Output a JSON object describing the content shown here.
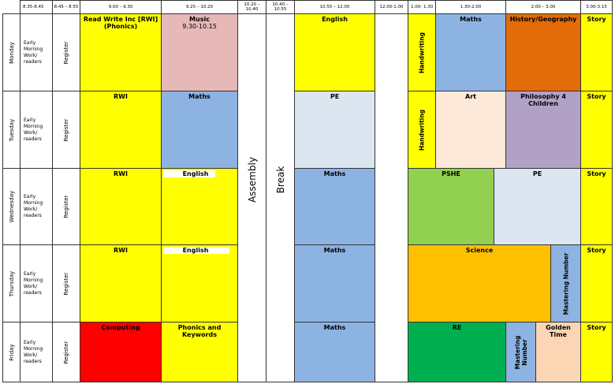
{
  "headers": {
    "t1": "8.35-8.45",
    "t2": "8.45 – 8.55",
    "t3": "9.00 – 9.30",
    "t4": "9.25 – 10.20",
    "t5": "10.20 – 10.40",
    "t6": "10.40 – 10.55",
    "t7": "10.55 – 12.00",
    "t8": "12.00-1.00",
    "t9": "1.00- 1.30",
    "t10": "1.30-2.00",
    "t11": "2.00 – 3.00",
    "t12": "3.00-3.15"
  },
  "days": [
    "Monday",
    "Tuesday",
    "Wednesday",
    "Thursday",
    "Friday"
  ],
  "early_work": "Early Morning Work/ readers",
  "register": "Register",
  "assembly": "Assembly",
  "break": "Break",
  "monday": {
    "p1": "Read Write Inc [RWI] (Phonics)",
    "p2": "Music",
    "p2_note": "9.30-10.15",
    "p3": "English",
    "handwriting": "Handwriting",
    "p4": "Maths",
    "p5": "History/Geography",
    "story": "Story"
  },
  "tuesday": {
    "p1": "RWI",
    "p2": "Maths",
    "p3": "PE",
    "handwriting": "Handwriting",
    "p4": "Art",
    "p5": "Philosophy 4 Children",
    "story": "Story"
  },
  "wednesday": {
    "p1": "RWI",
    "p2": "English",
    "p3": "Maths",
    "p4": "PSHE",
    "p5": "PE",
    "story": "Story"
  },
  "thursday": {
    "p1": "RWI",
    "p2": "English",
    "p3": "Maths",
    "p4": "Science",
    "p5": "Mastering Number",
    "story": "Story"
  },
  "friday": {
    "p1": "Computing",
    "p2": "Phonics and Keywords",
    "p3": "Maths",
    "p4": "RE",
    "p5": "Mastering Number",
    "p6": "Golden Time",
    "story": "Story"
  },
  "colors": {
    "yellow": "#ffff00",
    "pink": "#e6b8b8",
    "blue": "#8db3e2",
    "light_blue": "#dce6f1",
    "orange": "#e36c09",
    "peach": "#fde9d9",
    "purple": "#b2a1c7",
    "green": "#92d050",
    "gold": "#ffc000",
    "red": "#ff0000",
    "dark_green": "#00b050",
    "light_orange": "#fcd5b4"
  }
}
